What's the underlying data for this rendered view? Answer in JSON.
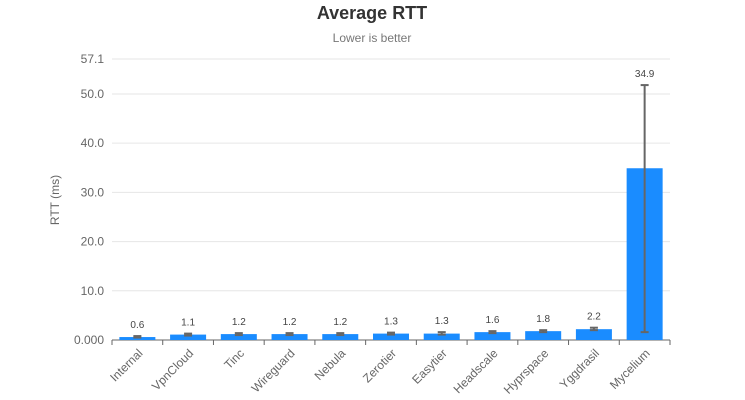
{
  "chart_data": {
    "type": "bar",
    "title": "Average RTT",
    "subtitle": "Lower is better",
    "ylabel": "RTT (ms)",
    "xlabel": "",
    "ylim": [
      0,
      57.1
    ],
    "yticks": [
      "0.000",
      "10.0",
      "20.0",
      "30.0",
      "40.0",
      "50.0",
      "57.1"
    ],
    "ytick_values": [
      0,
      10,
      20,
      30,
      40,
      50,
      57.1
    ],
    "grid": true,
    "categories": [
      "Internal",
      "VpnCloud",
      "Tinc",
      "Wireguard",
      "Nebula",
      "Zerotier",
      "Easytier",
      "Headscale",
      "Hyprspace",
      "Yggdrasil",
      "Mycelium"
    ],
    "values": [
      0.6,
      1.1,
      1.2,
      1.2,
      1.2,
      1.3,
      1.3,
      1.6,
      1.8,
      2.2,
      34.9
    ],
    "data_labels": [
      "0.6",
      "1.1",
      "1.2",
      "1.2",
      "1.2",
      "1.3",
      "1.3",
      "1.6",
      "1.8",
      "2.2",
      "34.9"
    ],
    "error_low": [
      0.5,
      0.9,
      1.0,
      1.0,
      1.0,
      1.1,
      1.1,
      1.4,
      1.6,
      2.0,
      1.6
    ],
    "error_high": [
      0.8,
      1.3,
      1.4,
      1.4,
      1.4,
      1.5,
      1.6,
      1.8,
      2.0,
      2.5,
      51.8
    ],
    "bar_color": "#1a8cff",
    "error_color": "#666666"
  }
}
